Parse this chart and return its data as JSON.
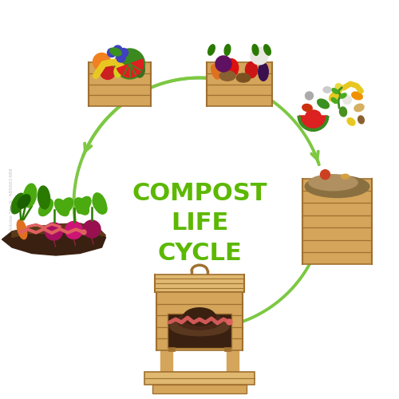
{
  "title_lines": [
    "COMPOST",
    "LIFE",
    "CYCLE"
  ],
  "title_color": "#5cb800",
  "title_fontsize": 22,
  "background_color": "#ffffff",
  "arrow_color": "#7dc843",
  "wood_color": "#d4a55a",
  "wood_dark": "#a07030",
  "wood_light": "#e0b870",
  "soil_dark": "#3a2010",
  "soil_mid": "#5a3820",
  "soil_light": "#7a5030",
  "green1": "#2a7a00",
  "green2": "#4aaa10",
  "green3": "#6acc30",
  "worm_color": "#e06060",
  "watermark": "Adobe Stock  485661489"
}
